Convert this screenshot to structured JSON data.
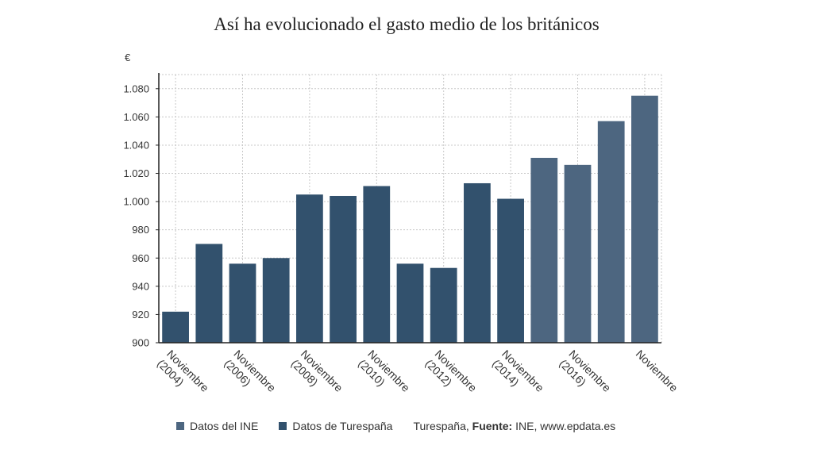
{
  "chart_data": {
    "type": "bar",
    "title": "Así ha evolucionado el gasto medio de los británicos",
    "y_unit": "€",
    "ylim": [
      900,
      1090
    ],
    "yticks": [
      900,
      920,
      940,
      960,
      980,
      1000,
      1020,
      1040,
      1060,
      1080
    ],
    "ytick_labels": [
      "900",
      "920",
      "940",
      "960",
      "980",
      "1.000",
      "1.020",
      "1.040",
      "1.060",
      "1.080"
    ],
    "grid": true,
    "series": [
      {
        "name": "Datos del INE",
        "color": "#4d6680"
      },
      {
        "name": "Datos de Turespaña",
        "color": "#32516d"
      }
    ],
    "bars": [
      {
        "value": 922,
        "series": 1
      },
      {
        "value": 970,
        "series": 1
      },
      {
        "value": 956,
        "series": 1
      },
      {
        "value": 960,
        "series": 1
      },
      {
        "value": 1005,
        "series": 1
      },
      {
        "value": 1004,
        "series": 1
      },
      {
        "value": 1011,
        "series": 1
      },
      {
        "value": 956,
        "series": 1
      },
      {
        "value": 953,
        "series": 1
      },
      {
        "value": 1013,
        "series": 1
      },
      {
        "value": 1002,
        "series": 1
      },
      {
        "value": 1031,
        "series": 0
      },
      {
        "value": 1026,
        "series": 0
      },
      {
        "value": 1057,
        "series": 0
      },
      {
        "value": 1075,
        "series": 0
      }
    ],
    "category_labels": [
      {
        "bar": 0,
        "lines": [
          "Noviembre",
          "(2004)"
        ]
      },
      {
        "bar": 2,
        "lines": [
          "Noviembre",
          "(2006)"
        ]
      },
      {
        "bar": 4,
        "lines": [
          "Noviembre",
          "(2008)"
        ]
      },
      {
        "bar": 6,
        "lines": [
          "Noviembre",
          "(2010)"
        ]
      },
      {
        "bar": 8,
        "lines": [
          "Noviembre",
          "(2012)"
        ]
      },
      {
        "bar": 10,
        "lines": [
          "Noviembre",
          "(2014)"
        ]
      },
      {
        "bar": 12,
        "lines": [
          "Noviembre",
          "(2016)"
        ]
      },
      {
        "bar": 14,
        "lines": [
          "Noviembre"
        ]
      }
    ],
    "legend_position": "bottom",
    "source": {
      "prefix": "Turespaña, ",
      "bold": "Fuente:",
      "suffix": " INE, www.epdata.es"
    }
  }
}
